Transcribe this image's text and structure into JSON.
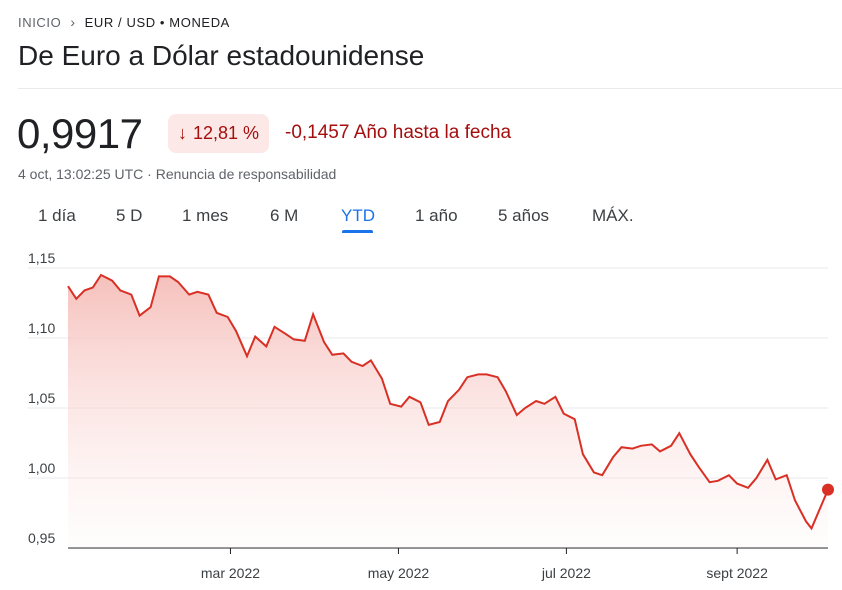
{
  "breadcrumb": {
    "home": "INICIO",
    "separator": "›",
    "current": "EUR / USD • MONEDA"
  },
  "title": "De Euro a Dólar estadounidense",
  "quote": {
    "price": "0,9917",
    "change_pct": "12,81 %",
    "change_abs": "-0,1457",
    "period": "Año hasta la fecha",
    "timestamp": "4 oct, 13:02:25 UTC",
    "separator": " · ",
    "disclaimer": "Renuncia de responsabilidad"
  },
  "tabs": [
    "1 día",
    "5 D",
    "1 mes",
    "6 M",
    "YTD",
    "1 año",
    "5 años",
    "MÁX."
  ],
  "active_tab": "YTD",
  "colors": {
    "line": "#d93025",
    "fill": "#f6c7c3",
    "accent": "#1a73e8",
    "negative": "#a50e0e"
  },
  "chart_data": {
    "type": "area",
    "grid": "horizontal dashed",
    "ylim": [
      0.95,
      1.15
    ],
    "yticks": [
      {
        "value": 1.15,
        "label": "1,15"
      },
      {
        "value": 1.1,
        "label": "1,10"
      },
      {
        "value": 1.05,
        "label": "1,05"
      },
      {
        "value": 1.0,
        "label": "1,00"
      },
      {
        "value": 0.95,
        "label": "0,95"
      }
    ],
    "xlim": [
      "2022-01-01",
      "2022-10-04"
    ],
    "xticks": [
      {
        "date": "2022-03-01",
        "label": "mar 2022"
      },
      {
        "date": "2022-05-01",
        "label": "may 2022"
      },
      {
        "date": "2022-07-01",
        "label": "jul 2022"
      },
      {
        "date": "2022-09-01",
        "label": "sept 2022"
      }
    ],
    "series": [
      {
        "x": [
          "2022-01-01",
          "2022-01-04",
          "2022-01-07",
          "2022-01-10",
          "2022-01-13",
          "2022-01-17",
          "2022-01-20",
          "2022-01-24",
          "2022-01-27",
          "2022-01-31",
          "2022-02-03",
          "2022-02-07",
          "2022-02-10",
          "2022-02-14",
          "2022-02-17",
          "2022-02-21",
          "2022-02-24",
          "2022-02-28",
          "2022-03-03",
          "2022-03-07",
          "2022-03-10",
          "2022-03-14",
          "2022-03-17",
          "2022-03-21",
          "2022-03-24",
          "2022-03-28",
          "2022-03-31",
          "2022-04-04",
          "2022-04-07",
          "2022-04-11",
          "2022-04-14",
          "2022-04-18",
          "2022-04-21",
          "2022-04-25",
          "2022-04-28",
          "2022-05-02",
          "2022-05-05",
          "2022-05-09",
          "2022-05-12",
          "2022-05-16",
          "2022-05-19",
          "2022-05-23",
          "2022-05-26",
          "2022-05-30",
          "2022-06-02",
          "2022-06-06",
          "2022-06-09",
          "2022-06-13",
          "2022-06-16",
          "2022-06-20",
          "2022-06-23",
          "2022-06-27",
          "2022-06-30",
          "2022-07-04",
          "2022-07-07",
          "2022-07-11",
          "2022-07-14",
          "2022-07-18",
          "2022-07-21",
          "2022-07-25",
          "2022-07-28",
          "2022-08-01",
          "2022-08-04",
          "2022-08-08",
          "2022-08-11",
          "2022-08-15",
          "2022-08-18",
          "2022-08-22",
          "2022-08-25",
          "2022-08-29",
          "2022-09-01",
          "2022-09-05",
          "2022-09-08",
          "2022-09-12",
          "2022-09-15",
          "2022-09-19",
          "2022-09-22",
          "2022-09-26",
          "2022-09-28",
          "2022-10-04"
        ],
        "values": [
          1.137,
          1.128,
          1.134,
          1.136,
          1.145,
          1.141,
          1.134,
          1.131,
          1.116,
          1.122,
          1.144,
          1.144,
          1.14,
          1.131,
          1.133,
          1.131,
          1.118,
          1.115,
          1.105,
          1.087,
          1.101,
          1.094,
          1.108,
          1.103,
          1.099,
          1.098,
          1.117,
          1.097,
          1.088,
          1.089,
          1.083,
          1.08,
          1.084,
          1.071,
          1.053,
          1.051,
          1.058,
          1.054,
          1.038,
          1.04,
          1.055,
          1.063,
          1.072,
          1.074,
          1.074,
          1.072,
          1.062,
          1.045,
          1.05,
          1.055,
          1.053,
          1.058,
          1.046,
          1.042,
          1.017,
          1.004,
          1.002,
          1.015,
          1.022,
          1.021,
          1.023,
          1.024,
          1.019,
          1.023,
          1.032,
          1.017,
          1.008,
          0.997,
          0.998,
          1.002,
          0.996,
          0.993,
          1.0,
          1.013,
          0.999,
          1.002,
          0.984,
          0.969,
          0.964,
          0.9917
        ]
      }
    ]
  }
}
